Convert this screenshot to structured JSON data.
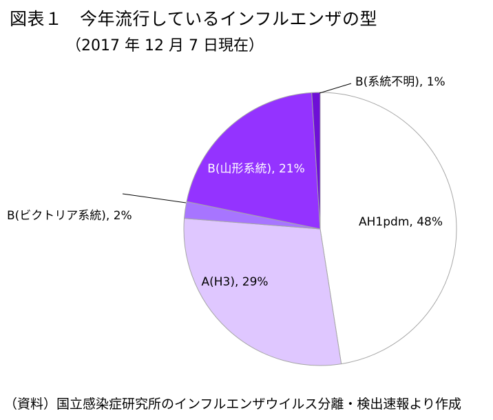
{
  "header": {
    "title": "図表１　今年流行しているインフルエンザの型",
    "subtitle": "（2017 年 12 月 7 日現在）"
  },
  "footer": {
    "source": "（資料）国立感染症研究所のインフルエンザウイルス分離・検出速報より作成"
  },
  "chart_data": {
    "type": "pie",
    "categories": [
      "AH1pdm",
      "A(H3)",
      "B(ビクトリア系統)",
      "B(山形系統)",
      "B(系統不明)"
    ],
    "values": [
      48,
      29,
      2,
      21,
      1
    ],
    "unit": "%",
    "labels": [
      "AH1pdm, 48%",
      "A(H3), 29%",
      "B(ビクトリア系統), 2%",
      "B(山形系統), 21%",
      "B(系統不明), 1%"
    ],
    "colors": [
      "#ffffff",
      "#dfc7ff",
      "#a775ff",
      "#9433ff",
      "#6e0fd6"
    ],
    "label_colors": [
      "#000000",
      "#000000",
      "#000000",
      "#ffffff",
      "#000000"
    ],
    "slice_stroke": "#a6a6a6",
    "start_angle_deg": 0,
    "direction": "clockwise",
    "legend": "none"
  }
}
